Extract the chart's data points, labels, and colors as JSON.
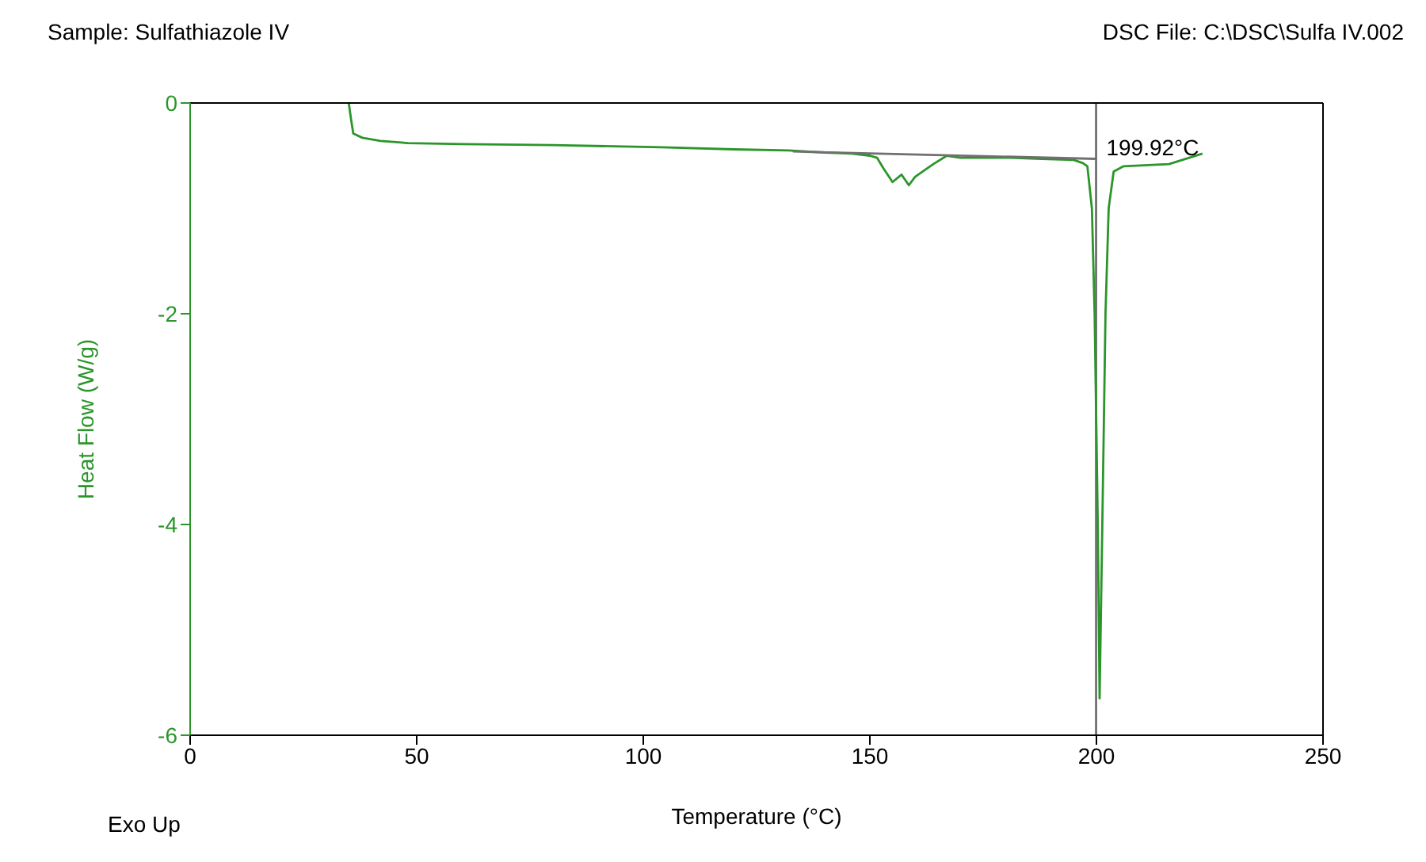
{
  "chart_data": {
    "type": "line",
    "title": "Sample: Sulfathiazole IV",
    "xlabel": "Temperature (°C)",
    "ylabel": "Heat Flow (W/g)",
    "xlim": [
      0,
      250
    ],
    "xticks": [
      0,
      50,
      100,
      150,
      200,
      250
    ],
    "ylim": [
      -6,
      0
    ],
    "yticks": [
      -6,
      -4,
      -2,
      0
    ],
    "grid": false,
    "marker": "none",
    "series": [
      {
        "color": "#2a962a",
        "x": [
          35,
          35.5,
          36,
          38,
          42,
          48,
          60,
          80,
          104,
          120,
          132,
          140,
          146,
          150,
          151.6,
          153,
          155,
          157,
          158.6,
          160,
          162,
          164,
          167,
          170,
          174,
          181,
          188,
          195,
          197,
          198,
          199,
          199.6,
          200.3,
          200.7,
          201.3,
          202,
          202.7,
          203.8,
          206,
          216,
          223.4
        ],
        "values": [
          0,
          -0.15,
          -0.29,
          -0.33,
          -0.36,
          -0.38,
          -0.39,
          -0.4,
          -0.42,
          -0.44,
          -0.45,
          -0.47,
          -0.48,
          -0.5,
          -0.52,
          -0.62,
          -0.75,
          -0.68,
          -0.78,
          -0.7,
          -0.64,
          -0.58,
          -0.5,
          -0.52,
          -0.52,
          -0.52,
          -0.53,
          -0.54,
          -0.57,
          -0.6,
          -1.0,
          -2.0,
          -4.0,
          -5.65,
          -4.0,
          -2.0,
          -1.0,
          -0.65,
          -0.6,
          -0.58,
          -0.48
        ]
      },
      {
        "color": "#707070",
        "x": [
          133,
          199.92
        ],
        "values": [
          -0.46,
          -0.53
        ]
      }
    ],
    "ref_lines": [
      {
        "axis": "x",
        "value": 199.92,
        "label": "199.92°C",
        "color": "#707070"
      }
    ],
    "annotations": [
      "DSC File: C:\\DSC\\Sulfa IV.002",
      "Exo Up"
    ]
  }
}
